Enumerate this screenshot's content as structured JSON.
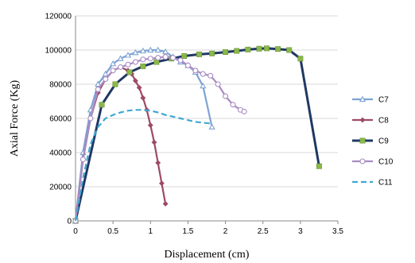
{
  "chart_data": {
    "type": "line",
    "xlabel": "Displacement  (cm)",
    "ylabel": "Axial Force (Kg)",
    "xlim": [
      0,
      3.5
    ],
    "ylim": [
      0,
      120000
    ],
    "xticks": [
      "0",
      "0.5",
      "1",
      "1.5",
      "2",
      "2.5",
      "3",
      "3.5"
    ],
    "yticks": [
      "0",
      "20000",
      "40000",
      "60000",
      "80000",
      "100000",
      "120000"
    ],
    "grid": "horizontal",
    "legend_position": "right",
    "series": [
      {
        "name": "C7",
        "color": "#7da3d3",
        "marker": "triangle",
        "dash": "solid",
        "x": [
          0,
          0.1,
          0.2,
          0.3,
          0.4,
          0.5,
          0.6,
          0.7,
          0.8,
          0.9,
          1.0,
          1.1,
          1.2,
          1.3,
          1.4,
          1.5,
          1.6,
          1.7,
          1.82
        ],
        "y": [
          0,
          40000,
          65000,
          80000,
          86000,
          92000,
          95000,
          97000,
          98500,
          99500,
          100000,
          100000,
          99000,
          96000,
          93000,
          91000,
          87000,
          79000,
          55000
        ]
      },
      {
        "name": "C8",
        "color": "#9e4a64",
        "marker": "diamond",
        "dash": "solid",
        "x": [
          0,
          0.1,
          0.2,
          0.3,
          0.4,
          0.5,
          0.6,
          0.7,
          0.75,
          0.8,
          0.85,
          0.9,
          0.95,
          1.0,
          1.05,
          1.1,
          1.15,
          1.2
        ],
        "y": [
          0,
          36000,
          60000,
          75000,
          83000,
          88000,
          90000,
          88000,
          86000,
          82000,
          78000,
          72000,
          65000,
          56000,
          46000,
          34000,
          22000,
          10000
        ]
      },
      {
        "name": "C9",
        "color": "#8ab84a",
        "marker": "square",
        "dash": "solid",
        "x": [
          0,
          0.35,
          0.53,
          0.72,
          0.9,
          1.08,
          1.28,
          1.45,
          1.65,
          1.82,
          2.0,
          2.15,
          2.3,
          2.45,
          2.55,
          2.7,
          2.85,
          3.0,
          3.25
        ],
        "y": [
          0,
          68000,
          80000,
          87000,
          90500,
          93000,
          95000,
          96500,
          97500,
          98000,
          98800,
          99500,
          100300,
          100800,
          101000,
          100600,
          100000,
          95000,
          32000
        ]
      },
      {
        "name": "C10",
        "color": "#a98bc3",
        "marker": "circle",
        "dash": "solid",
        "x": [
          0,
          0.1,
          0.2,
          0.3,
          0.4,
          0.5,
          0.6,
          0.7,
          0.8,
          0.9,
          1.0,
          1.1,
          1.2,
          1.3,
          1.4,
          1.5,
          1.6,
          1.7,
          1.8,
          1.9,
          2.0,
          2.1,
          2.2,
          2.25
        ],
        "y": [
          0,
          36000,
          60000,
          77000,
          83000,
          88000,
          90000,
          91500,
          93000,
          94500,
          95000,
          95500,
          96000,
          95500,
          94000,
          91000,
          88000,
          86000,
          85000,
          80000,
          73000,
          68000,
          65000,
          64000
        ]
      },
      {
        "name": "C11",
        "color": "#3fa9d4",
        "marker": "none",
        "dash": "dashed",
        "x": [
          0,
          0.1,
          0.2,
          0.3,
          0.4,
          0.5,
          0.6,
          0.7,
          0.8,
          0.9,
          1.0,
          1.1,
          1.2,
          1.3,
          1.4,
          1.5,
          1.6,
          1.7,
          1.8
        ],
        "y": [
          0,
          25000,
          45000,
          55000,
          60000,
          62000,
          63500,
          64500,
          65000,
          65000,
          64500,
          63500,
          62000,
          61000,
          60000,
          59000,
          58000,
          57500,
          57000
        ]
      }
    ]
  }
}
